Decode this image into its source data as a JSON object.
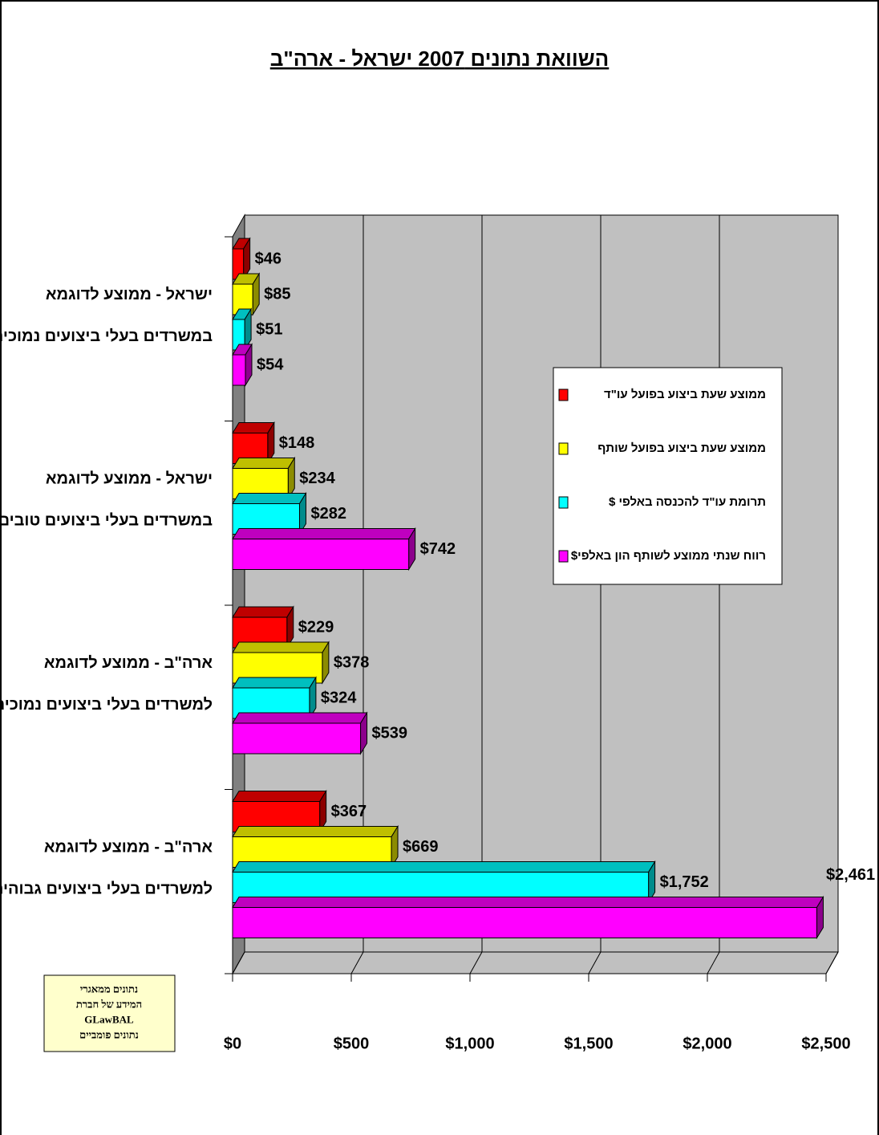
{
  "chart_data": {
    "type": "bar3d",
    "title": "השוואת נתונים 2007 ישראל - ארה\"ב",
    "categories": [
      "ישראל - ממוצע לדוגמא\nבמשרדים בעלי ביצועים נמוכים",
      "ישראל - ממוצע לדוגמא\nבמשרדים בעלי ביצועים טובים",
      "ארה\"ב - ממוצע לדוגמא\nלמשרדים בעלי ביצועים נמוכים",
      "ארה\"ב - ממוצע לדוגמא\nלמשרדים בעלי ביצועים גבוהים"
    ],
    "series": [
      {
        "name": "ממוצע שעת ביצוע בפועל עו\"ד",
        "color": "#ff0000",
        "values": [
          46,
          148,
          229,
          367
        ],
        "value_labels": [
          "$46",
          "$148",
          "$229",
          "$367"
        ]
      },
      {
        "name": "ממוצע שעת ביצוע בפועל שותף",
        "color": "#ffff00",
        "values": [
          85,
          234,
          378,
          669
        ],
        "value_labels": [
          "$85",
          "$234",
          "$378",
          "$669"
        ]
      },
      {
        "name": "תרומת עו\"ד להכנסה באלפי $",
        "color": "#00ffff",
        "values": [
          51,
          282,
          324,
          1752
        ],
        "value_labels": [
          "$51",
          "$282",
          "$324",
          "$1,752"
        ]
      },
      {
        "name": "רווח שנתי ממוצע לשותף הון באלפי$",
        "color": "#ff00ff",
        "values": [
          54,
          742,
          539,
          2461
        ],
        "value_labels": [
          "$54",
          "$742",
          "$539",
          "$2,461"
        ]
      }
    ],
    "xlim": [
      0,
      2500
    ],
    "xticks": [
      {
        "value": 0,
        "label": "$0"
      },
      {
        "value": 500,
        "label": "$500"
      },
      {
        "value": 1000,
        "label": "$1,000"
      },
      {
        "value": 1500,
        "label": "$1,500"
      },
      {
        "value": 2000,
        "label": "$2,000"
      },
      {
        "value": 2500,
        "label": "$2,500"
      }
    ],
    "grid": true,
    "annotation": "נתונים ממאגרי\nהמידע של חברת\nGLawBAL\nנתונים פומביים"
  }
}
